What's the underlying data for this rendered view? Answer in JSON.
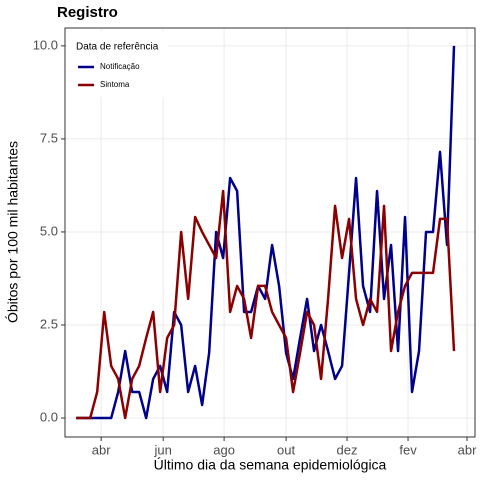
{
  "chart_data": {
    "type": "line",
    "title": "Registro",
    "x_label": "Último dia da semana epidemiológica",
    "y_label": "Óbitos por 100 mil habitantes",
    "legend_title": "Data de referência",
    "legend_position": "top-left",
    "grid": true,
    "x": [
      0,
      1,
      2,
      3,
      4,
      5,
      6,
      7,
      8,
      9,
      10,
      11,
      12,
      13,
      14,
      15,
      16,
      17,
      18,
      19,
      20,
      21,
      22,
      23,
      24,
      25,
      26,
      27,
      28,
      29,
      30,
      31,
      32,
      33,
      34,
      35,
      36,
      37,
      38,
      39,
      40,
      41,
      42,
      43,
      44,
      45,
      46,
      47,
      48,
      49,
      50,
      51,
      52,
      53,
      54
    ],
    "series": [
      {
        "name": "Notificação",
        "color": "#00008b",
        "values": [
          0,
          0,
          0,
          0,
          0,
          0,
          0.7,
          1.8,
          0.7,
          0.7,
          0,
          1.05,
          1.4,
          0.7,
          2.85,
          2.5,
          0.7,
          1.4,
          0.35,
          1.75,
          5.0,
          4.3,
          6.45,
          6.1,
          2.85,
          2.85,
          3.55,
          3.2,
          4.65,
          3.55,
          1.75,
          1.05,
          2.15,
          3.2,
          1.8,
          2.5,
          1.8,
          1.05,
          1.4,
          3.9,
          6.45,
          3.55,
          2.85,
          6.1,
          3.2,
          4.65,
          1.8,
          5.4,
          0.7,
          1.8,
          5.0,
          5.0,
          7.15,
          4.65,
          10.0
        ]
      },
      {
        "name": "Sintoma",
        "color": "#8b0000",
        "values": [
          0,
          0,
          0,
          0.7,
          2.85,
          1.4,
          1.05,
          0,
          1.05,
          1.4,
          2.15,
          2.85,
          0.7,
          2.15,
          2.5,
          5.0,
          3.2,
          5.4,
          5.0,
          4.65,
          4.3,
          6.1,
          2.85,
          3.55,
          3.2,
          2.15,
          3.55,
          3.55,
          2.85,
          2.5,
          2.15,
          0.7,
          1.75,
          2.85,
          2.5,
          1.05,
          3.2,
          5.7,
          4.3,
          5.35,
          3.2,
          2.5,
          3.2,
          2.85,
          5.7,
          1.8,
          2.85,
          3.55,
          3.9,
          3.9,
          3.9,
          3.9,
          5.35,
          5.35,
          1.8
        ]
      }
    ],
    "xlim": [
      -1.6,
      57
    ],
    "xticks": [
      {
        "value": 3.57,
        "label": "abr"
      },
      {
        "value": 12.43,
        "label": "jun"
      },
      {
        "value": 21.14,
        "label": "ago"
      },
      {
        "value": 30,
        "label": "out"
      },
      {
        "value": 38.71,
        "label": "dez"
      },
      {
        "value": 47.43,
        "label": "fev"
      },
      {
        "value": 55.86,
        "label": "abr"
      }
    ],
    "ylim": [
      -0.51,
      10.48
    ],
    "yticks": [
      {
        "value": 0,
        "label": "0.0"
      },
      2.5,
      {
        "value": 5,
        "label": "5.0"
      },
      7.5,
      {
        "value": 10,
        "label": "10.0"
      }
    ]
  }
}
